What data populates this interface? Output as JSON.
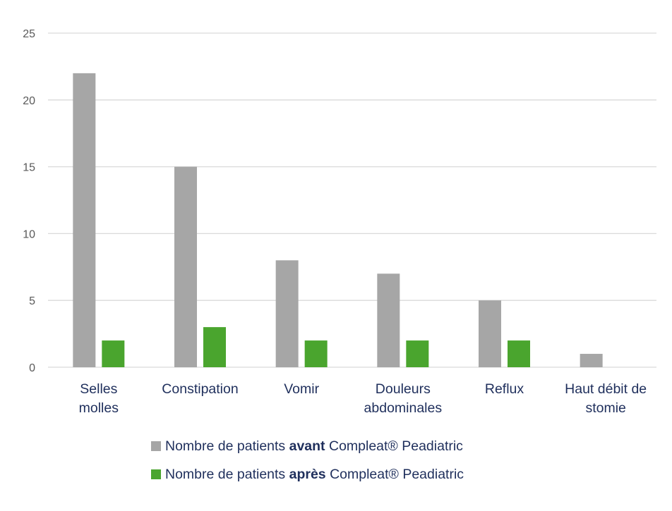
{
  "colors": {
    "before": "#a6a6a6",
    "after": "#4aa52e",
    "grid": "#d9d9d9",
    "tick_text": "#595959",
    "category_text": "#1f2f5c",
    "legend_text": "#1f2f5c"
  },
  "chart_data": {
    "type": "bar",
    "categories": [
      [
        "Selles",
        "molles"
      ],
      [
        "Constipation"
      ],
      [
        "Vomir"
      ],
      [
        "Douleurs",
        "abdominales"
      ],
      [
        "Reflux"
      ],
      [
        "Haut débit de",
        "stomie"
      ]
    ],
    "series": [
      {
        "name": "Nombre de patients avant Compleat® Peadiatric",
        "values": [
          22,
          15,
          8,
          7,
          5,
          1
        ]
      },
      {
        "name": "Nombre de patients après Compleat® Peadiatric",
        "values": [
          2,
          3,
          2,
          2,
          2,
          0
        ]
      }
    ],
    "ylim": [
      0,
      25
    ],
    "yticks": [
      "0",
      "5",
      "10",
      "15",
      "20",
      "25"
    ],
    "grid": true,
    "legend_position": "bottom"
  },
  "legend": [
    {
      "prefix": "Nombre de patients ",
      "bold": "avant",
      "suffix": " Compleat® Peadiatric"
    },
    {
      "prefix": "Nombre de patients ",
      "bold": "après",
      "suffix": " Compleat® Peadiatric"
    }
  ]
}
